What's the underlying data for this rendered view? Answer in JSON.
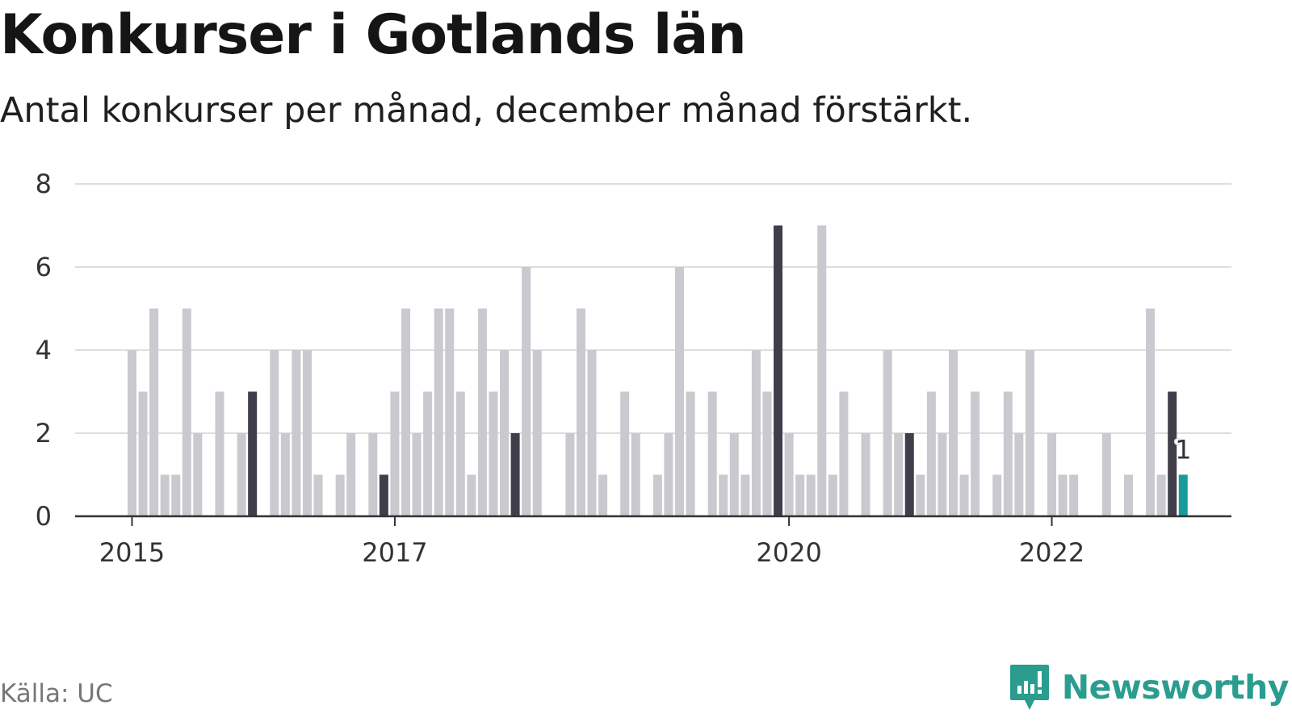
{
  "title": "Konkurser i Gotlands län",
  "subtitle": "Antal konkurser per månad, december månad förstärkt.",
  "source": "Källa: UC",
  "brand": {
    "name": "Newsworthy",
    "icon": "newsworthy-logo-icon"
  },
  "colors": {
    "bar": "#c9c9cf",
    "december": "#3f3e4a",
    "latest": "#1a9a98",
    "axis": "#333333",
    "grid": "#dedede",
    "brand": "#2a9d8f"
  },
  "chart_data": {
    "type": "bar",
    "title": "Konkurser i Gotlands län",
    "subtitle": "Antal konkurser per månad, december månad förstärkt.",
    "xlabel": "",
    "ylabel": "",
    "ylim": [
      0,
      8
    ],
    "yticks": [
      0,
      2,
      4,
      6,
      8
    ],
    "x_tick_labels": [
      "2015",
      "2017",
      "2020",
      "2022"
    ],
    "grid": true,
    "highlight": "december",
    "last_label": "1",
    "start_month": "2015-01",
    "values": [
      4,
      3,
      5,
      1,
      1,
      5,
      2,
      0,
      3,
      0,
      2,
      3,
      0,
      4,
      2,
      4,
      4,
      1,
      0,
      1,
      2,
      0,
      2,
      1,
      3,
      5,
      2,
      3,
      5,
      5,
      3,
      1,
      5,
      3,
      4,
      2,
      6,
      4,
      0,
      0,
      2,
      5,
      4,
      1,
      0,
      3,
      2,
      0,
      1,
      2,
      6,
      3,
      0,
      3,
      1,
      2,
      1,
      4,
      3,
      7,
      2,
      1,
      1,
      7,
      1,
      3,
      0,
      2,
      0,
      4,
      2,
      2,
      1,
      3,
      2,
      4,
      1,
      3,
      0,
      1,
      3,
      2,
      4,
      0,
      2,
      1,
      1,
      0,
      0,
      2,
      0,
      1,
      0,
      5,
      1,
      3,
      1
    ]
  }
}
